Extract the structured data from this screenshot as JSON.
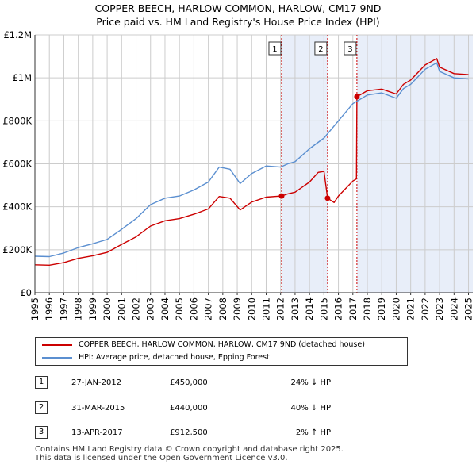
{
  "title_line1": "COPPER BEECH, HARLOW COMMON, HARLOW, CM17 9ND",
  "title_line2": "Price paid vs. HM Land Registry's House Price Index (HPI)",
  "colors": {
    "price_paid": "#cc0000",
    "hpi": "#5b8fd0",
    "shade": "#e8eef9",
    "grid": "#cccccc"
  },
  "chart_data": {
    "type": "line",
    "title": "Price paid vs. HM Land Registry's House Price Index (HPI)",
    "xlim": [
      1995,
      2025.3
    ],
    "ylim": [
      0,
      1200000
    ],
    "yticks": [
      {
        "v": 0,
        "label": "£0"
      },
      {
        "v": 200000,
        "label": "£200K"
      },
      {
        "v": 400000,
        "label": "£400K"
      },
      {
        "v": 600000,
        "label": "£600K"
      },
      {
        "v": 800000,
        "label": "£800K"
      },
      {
        "v": 1000000,
        "label": "£1M"
      },
      {
        "v": 1200000,
        "label": "£1.2M"
      }
    ],
    "xticks": [
      "1995",
      "1996",
      "1997",
      "1998",
      "1999",
      "2000",
      "2001",
      "2002",
      "2003",
      "2004",
      "2005",
      "2006",
      "2007",
      "2008",
      "2009",
      "2010",
      "2011",
      "2012",
      "2013",
      "2014",
      "2015",
      "2016",
      "2017",
      "2018",
      "2019",
      "2020",
      "2021",
      "2022",
      "2023",
      "2024",
      "2025"
    ],
    "series": [
      {
        "name": "HPI: Average price, detached house, Epping Forest",
        "color": "#5b8fd0",
        "x": [
          1995,
          1996,
          1997,
          1998,
          1999,
          2000,
          2001,
          2002,
          2003,
          2004,
          2005,
          2006,
          2007,
          2007.75,
          2008.5,
          2009.2,
          2010,
          2011,
          2012,
          2012.5,
          2013,
          2014,
          2015,
          2016,
          2017,
          2018,
          2019,
          2020,
          2020.5,
          2021,
          2022,
          2022.8,
          2023,
          2024,
          2025
        ],
        "y": [
          170000,
          168000,
          185000,
          210000,
          228000,
          248000,
          295000,
          345000,
          410000,
          440000,
          450000,
          478000,
          515000,
          585000,
          575000,
          508000,
          555000,
          590000,
          585000,
          600000,
          610000,
          670000,
          720000,
          800000,
          880000,
          920000,
          930000,
          905000,
          950000,
          970000,
          1040000,
          1070000,
          1030000,
          1000000,
          995000
        ]
      },
      {
        "name": "COPPER BEECH, HARLOW COMMON, HARLOW, CM17 9ND (detached house)",
        "color": "#cc0000",
        "x": [
          1995,
          1996,
          1997,
          1998,
          1999,
          2000,
          2001,
          2002,
          2003,
          2004,
          2005,
          2006,
          2007,
          2007.75,
          2008.5,
          2009.2,
          2010,
          2011,
          2012.07,
          2012.5,
          2013,
          2014,
          2014.6,
          2015.0,
          2015.25,
          2015.7,
          2016,
          2017,
          2017.25,
          2017.28,
          2018,
          2019,
          2020,
          2020.5,
          2021,
          2022,
          2022.8,
          2023,
          2024,
          2025
        ],
        "y": [
          130000,
          128000,
          140000,
          160000,
          172000,
          188000,
          225000,
          260000,
          310000,
          335000,
          345000,
          365000,
          390000,
          448000,
          440000,
          385000,
          422000,
          445000,
          450000,
          460000,
          468000,
          515000,
          560000,
          565000,
          440000,
          420000,
          450000,
          520000,
          530000,
          912500,
          940000,
          948000,
          925000,
          970000,
          990000,
          1060000,
          1090000,
          1050000,
          1020000,
          1015000
        ]
      }
    ],
    "sales": [
      {
        "label": "1",
        "year": 2012.07,
        "price": 450000
      },
      {
        "label": "2",
        "year": 2015.25,
        "price": 440000
      },
      {
        "label": "3",
        "year": 2017.28,
        "price": 912500
      }
    ],
    "shaded_ranges": [
      [
        2012.07,
        2015.25
      ],
      [
        2017.28,
        2025.3
      ]
    ]
  },
  "legend": {
    "property_label": "COPPER BEECH, HARLOW COMMON, HARLOW, CM17 9ND (detached house)",
    "hpi_label": "HPI: Average price, detached house, Epping Forest"
  },
  "transactions": [
    {
      "num": "1",
      "date": "27-JAN-2012",
      "price": "£450,000",
      "hpi": "24% ↓ HPI"
    },
    {
      "num": "2",
      "date": "31-MAR-2015",
      "price": "£440,000",
      "hpi": "40% ↓ HPI"
    },
    {
      "num": "3",
      "date": "13-APR-2017",
      "price": "£912,500",
      "hpi": "2% ↑ HPI"
    }
  ],
  "footer_line1": "Contains HM Land Registry data © Crown copyright and database right 2025.",
  "footer_line2": "This data is licensed under the Open Government Licence v3.0."
}
